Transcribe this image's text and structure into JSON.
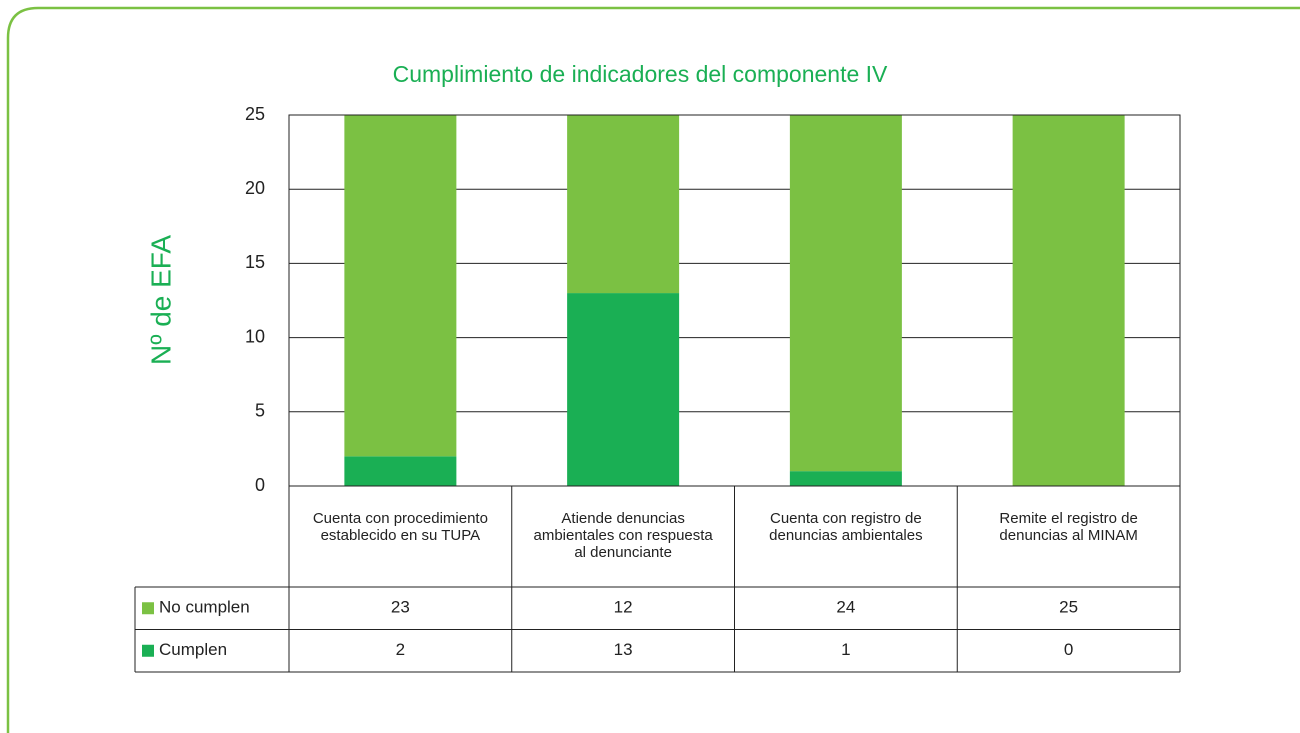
{
  "chart_data": {
    "type": "stacked_bar",
    "title": "Cumplimiento de indicadores del componente IV",
    "y_label": "Nº de EFA",
    "categories": [
      "Cuenta con procedimiento establecido en su TUPA",
      "Atiende denuncias ambientales con respuesta al denunciante",
      "Cuenta con registro de denuncias ambientales",
      "Remite el registro de denuncias al MINAM"
    ],
    "series": [
      {
        "name": "No cumplen",
        "color": "#7bc143",
        "values": [
          23,
          12,
          24,
          25
        ]
      },
      {
        "name": "Cumplen",
        "color": "#1aaf54",
        "values": [
          2,
          13,
          1,
          0
        ]
      }
    ],
    "ylim": [
      0,
      25
    ],
    "yticks": [
      0,
      5,
      10,
      15,
      20,
      25
    ],
    "grid": true
  }
}
